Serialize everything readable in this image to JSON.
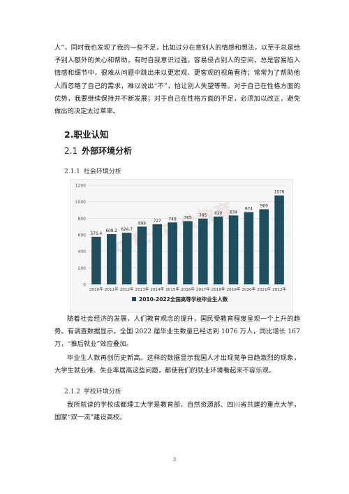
{
  "paragraphs": {
    "p1": "人”，同时我也发现了我的一些不足，比如过分在意别人的情感和想法，以至于总是给予别人额外的关心和帮助，有时自我意识过强，容易侵占别人的空间，总是容易陷入情感和细节中，很难从问题中跳出来以更宏观、更客观的视角看待；常常为了帮助他人而忽略了自己的需求，难以说出“不”，怕让别人失望等等。对于自己在性格方面的优势，我要继续保持并不断发展；对于自己在性格方面的不足，必须加以改正，避免做出的决定太过草率。",
    "p2": "随着社会经济的发展，人们教育观念的提升，国民受教育程度呈现一个上升的趋势。有调查数据显示，全国 2022 届毕业生数量已经达到 1076 万人，同比增长 167 万，“推后就业”效应叠加。",
    "p3": "毕业生人数再创历史新高。这样的数据显示我国人才出现竞争日趋激烈的现象，大学生就业难、失业率居高这些问题，都使我们的就业环境看起来不容乐观。",
    "p4": "我所就读的学校成都理工大学是教育部、自然资源部、四川省共建的重点大学，国家“双一流”建设高校。"
  },
  "headings": {
    "h2": "2.职业认知",
    "h21_num": "2.1",
    "h21_text": "外部环境分析",
    "h211_num": "2.1.1",
    "h211_text": "社会环境分析",
    "h212_num": "2.1.2",
    "h212_text": "学校环境分析"
  },
  "chart_data": {
    "type": "bar",
    "categories": [
      "2010年",
      "2011年",
      "2012年",
      "2013年",
      "2014年",
      "2015年",
      "2016年",
      "2017年",
      "2018年",
      "2019年",
      "2020年",
      "2021年",
      "2022年"
    ],
    "values": [
      575.4,
      608.2,
      624.7,
      699,
      727,
      749,
      765,
      795,
      820,
      834,
      874,
      909,
      1076
    ],
    "value_labels": [
      "575.4",
      "608.2",
      "624.7",
      "699",
      "727",
      "749",
      "765",
      "795",
      "820",
      "834",
      "874",
      "909",
      "1076"
    ],
    "ylim": [
      0,
      1200
    ],
    "yticks": [
      "0",
      "200",
      "400",
      "600",
      "800",
      "1000",
      "1200"
    ],
    "legend": "2010-2022全国高等学校毕业生人数",
    "bar_color": "#1f4e5e",
    "watermark": "offcn中公教育"
  },
  "page_number": "3"
}
